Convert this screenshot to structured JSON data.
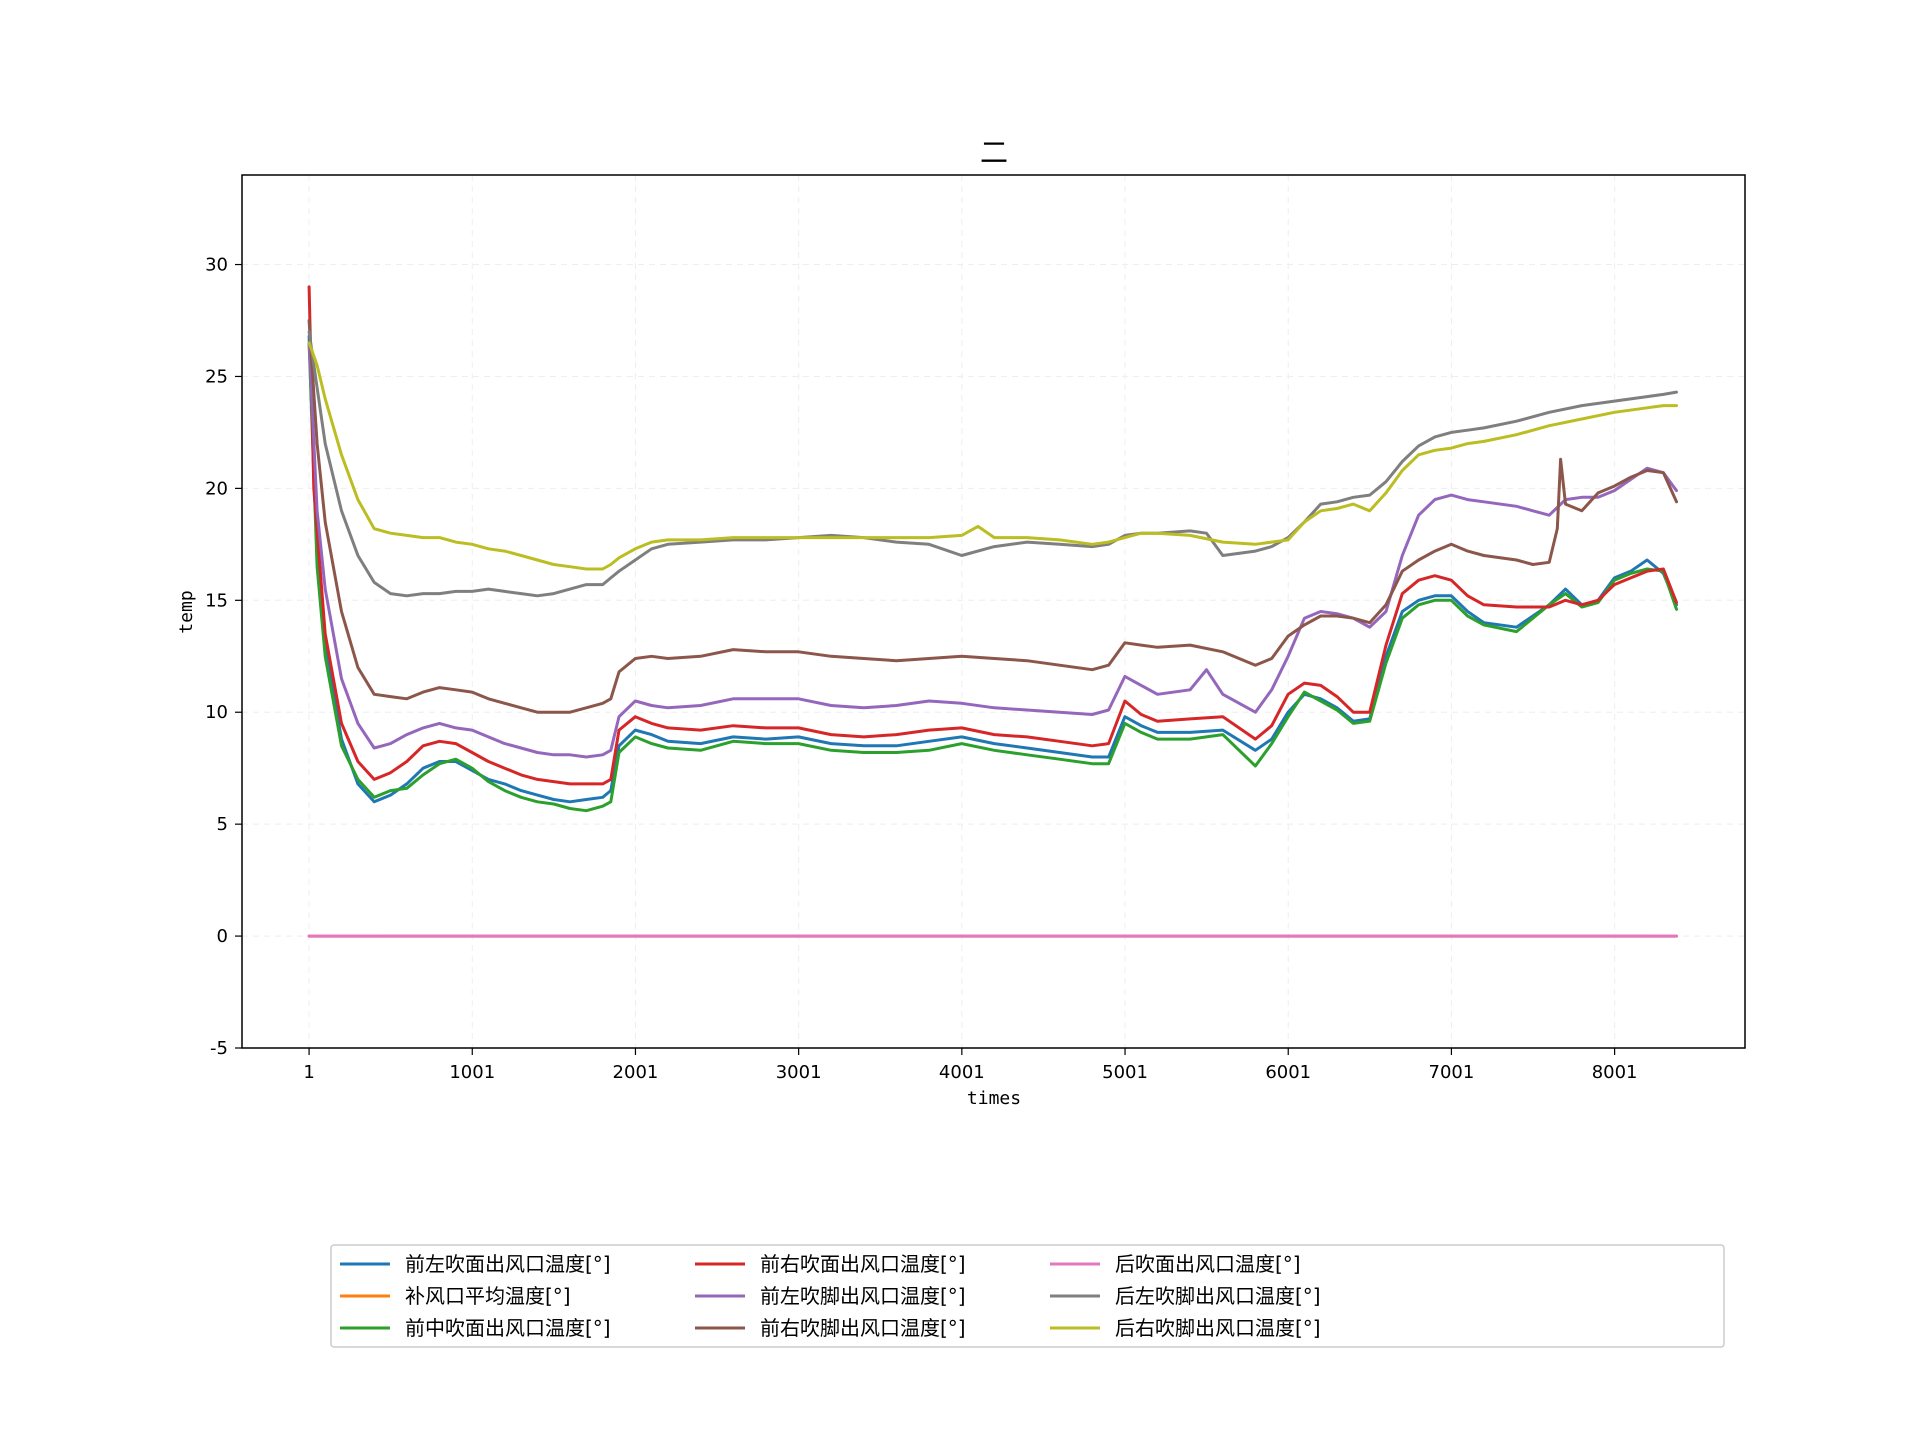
{
  "chart_data": {
    "type": "line",
    "title": "二",
    "xlabel": "times",
    "ylabel": "temp",
    "xlim": [
      -410,
      8800
    ],
    "ylim": [
      -5,
      34
    ],
    "xticks": [
      1,
      1001,
      2001,
      3001,
      4001,
      5001,
      6001,
      7001,
      8001
    ],
    "yticks": [
      -5,
      0,
      5,
      10,
      15,
      20,
      25,
      30
    ],
    "grid": true,
    "legend_placement": "bottom-center, 4 columns",
    "series": [
      {
        "name": "前左吹面出风口温度[°]",
        "color": "#1f77b4",
        "x": [
          1,
          50,
          100,
          200,
          300,
          400,
          500,
          600,
          700,
          800,
          900,
          1000,
          1100,
          1200,
          1300,
          1400,
          1500,
          1600,
          1700,
          1800,
          1850,
          1900,
          2000,
          2100,
          2200,
          2400,
          2600,
          2800,
          3000,
          3200,
          3400,
          3600,
          3800,
          4000,
          4200,
          4400,
          4600,
          4800,
          4900,
          5000,
          5100,
          5200,
          5400,
          5600,
          5800,
          5900,
          6000,
          6100,
          6200,
          6300,
          6400,
          6500,
          6600,
          6700,
          6800,
          6900,
          7000,
          7100,
          7200,
          7400,
          7600,
          7700,
          7800,
          7900,
          8000,
          8100,
          8200,
          8300,
          8380
        ],
        "y": [
          26.8,
          17.0,
          13.0,
          8.8,
          6.8,
          6.0,
          6.3,
          6.8,
          7.5,
          7.8,
          7.8,
          7.4,
          7.0,
          6.8,
          6.5,
          6.3,
          6.1,
          6.0,
          6.1,
          6.2,
          6.5,
          8.5,
          9.2,
          9.0,
          8.7,
          8.6,
          8.9,
          8.8,
          8.9,
          8.6,
          8.5,
          8.5,
          8.7,
          8.9,
          8.6,
          8.4,
          8.2,
          8.0,
          8.0,
          9.8,
          9.4,
          9.1,
          9.1,
          9.2,
          8.3,
          8.8,
          10.0,
          10.8,
          10.6,
          10.2,
          9.6,
          9.7,
          12.5,
          14.5,
          15.0,
          15.2,
          15.2,
          14.5,
          14.0,
          13.8,
          14.8,
          15.5,
          14.8,
          15.0,
          16.0,
          16.3,
          16.8,
          16.2,
          14.8
        ]
      },
      {
        "name": "补风口平均温度[°]",
        "color": "#ff7f0e",
        "x": [
          1,
          8380
        ],
        "y": [
          0,
          0
        ]
      },
      {
        "name": "前中吹面出风口温度[°]",
        "color": "#2ca02c",
        "x": [
          1,
          50,
          100,
          200,
          300,
          400,
          500,
          600,
          700,
          800,
          900,
          1000,
          1100,
          1200,
          1300,
          1400,
          1500,
          1600,
          1700,
          1800,
          1850,
          1900,
          2000,
          2100,
          2200,
          2400,
          2600,
          2800,
          3000,
          3200,
          3400,
          3600,
          3800,
          4000,
          4200,
          4400,
          4600,
          4800,
          4900,
          5000,
          5100,
          5200,
          5400,
          5600,
          5800,
          5900,
          6000,
          6100,
          6200,
          6300,
          6400,
          6500,
          6600,
          6700,
          6800,
          6900,
          7000,
          7100,
          7200,
          7400,
          7600,
          7700,
          7800,
          7900,
          8000,
          8100,
          8200,
          8300,
          8380
        ],
        "y": [
          26.5,
          16.5,
          12.5,
          8.5,
          7.0,
          6.2,
          6.5,
          6.6,
          7.2,
          7.7,
          7.9,
          7.5,
          6.9,
          6.5,
          6.2,
          6.0,
          5.9,
          5.7,
          5.6,
          5.8,
          6.0,
          8.2,
          8.9,
          8.6,
          8.4,
          8.3,
          8.7,
          8.6,
          8.6,
          8.3,
          8.2,
          8.2,
          8.3,
          8.6,
          8.3,
          8.1,
          7.9,
          7.7,
          7.7,
          9.5,
          9.1,
          8.8,
          8.8,
          9.0,
          7.6,
          8.6,
          9.8,
          10.9,
          10.5,
          10.1,
          9.5,
          9.6,
          12.2,
          14.2,
          14.8,
          15.0,
          15.0,
          14.3,
          13.9,
          13.6,
          14.8,
          15.3,
          14.7,
          14.9,
          15.9,
          16.2,
          16.4,
          16.3,
          14.6
        ]
      },
      {
        "name": "前右吹面出风口温度[°]",
        "color": "#d62728",
        "x": [
          1,
          30,
          100,
          200,
          300,
          400,
          500,
          600,
          700,
          800,
          900,
          1000,
          1100,
          1200,
          1300,
          1400,
          1500,
          1600,
          1700,
          1800,
          1850,
          1900,
          2000,
          2100,
          2200,
          2400,
          2600,
          2800,
          3000,
          3200,
          3400,
          3600,
          3800,
          4000,
          4200,
          4400,
          4600,
          4800,
          4900,
          5000,
          5100,
          5200,
          5400,
          5600,
          5800,
          5900,
          6000,
          6100,
          6200,
          6300,
          6400,
          6500,
          6600,
          6700,
          6800,
          6900,
          7000,
          7100,
          7200,
          7400,
          7600,
          7700,
          7800,
          7900,
          8000,
          8100,
          8200,
          8300,
          8380
        ],
        "y": [
          29.0,
          20.0,
          13.5,
          9.5,
          7.8,
          7.0,
          7.3,
          7.8,
          8.5,
          8.7,
          8.6,
          8.2,
          7.8,
          7.5,
          7.2,
          7.0,
          6.9,
          6.8,
          6.8,
          6.8,
          7.0,
          9.2,
          9.8,
          9.5,
          9.3,
          9.2,
          9.4,
          9.3,
          9.3,
          9.0,
          8.9,
          9.0,
          9.2,
          9.3,
          9.0,
          8.9,
          8.7,
          8.5,
          8.6,
          10.5,
          9.9,
          9.6,
          9.7,
          9.8,
          8.8,
          9.4,
          10.8,
          11.3,
          11.2,
          10.7,
          10.0,
          10.0,
          13.0,
          15.3,
          15.9,
          16.1,
          15.9,
          15.2,
          14.8,
          14.7,
          14.7,
          15.0,
          14.8,
          15.0,
          15.7,
          16.0,
          16.3,
          16.4,
          14.9
        ]
      },
      {
        "name": "前左吹脚出风口温度[°]",
        "color": "#9467bd",
        "x": [
          1,
          50,
          100,
          200,
          300,
          400,
          500,
          600,
          700,
          800,
          900,
          1000,
          1100,
          1200,
          1300,
          1400,
          1500,
          1600,
          1700,
          1800,
          1850,
          1900,
          2000,
          2100,
          2200,
          2400,
          2600,
          2800,
          3000,
          3200,
          3400,
          3600,
          3800,
          4000,
          4200,
          4400,
          4600,
          4800,
          4900,
          5000,
          5100,
          5200,
          5400,
          5500,
          5600,
          5800,
          5900,
          6000,
          6100,
          6200,
          6300,
          6400,
          6500,
          6600,
          6700,
          6800,
          6900,
          7000,
          7100,
          7200,
          7400,
          7500,
          7600,
          7700,
          7800,
          7900,
          8000,
          8100,
          8200,
          8300,
          8380
        ],
        "y": [
          26.5,
          19.0,
          15.5,
          11.5,
          9.5,
          8.4,
          8.6,
          9.0,
          9.3,
          9.5,
          9.3,
          9.2,
          8.9,
          8.6,
          8.4,
          8.2,
          8.1,
          8.1,
          8.0,
          8.1,
          8.3,
          9.8,
          10.5,
          10.3,
          10.2,
          10.3,
          10.6,
          10.6,
          10.6,
          10.3,
          10.2,
          10.3,
          10.5,
          10.4,
          10.2,
          10.1,
          10.0,
          9.9,
          10.1,
          11.6,
          11.2,
          10.8,
          11.0,
          11.9,
          10.8,
          10.0,
          11.0,
          12.5,
          14.2,
          14.5,
          14.4,
          14.2,
          13.8,
          14.5,
          17.0,
          18.8,
          19.5,
          19.7,
          19.5,
          19.4,
          19.2,
          19.0,
          18.8,
          19.5,
          19.6,
          19.6,
          19.9,
          20.4,
          20.9,
          20.7,
          19.9
        ]
      },
      {
        "name": "前右吹脚出风口温度[°]",
        "color": "#8c564b",
        "x": [
          1,
          50,
          100,
          200,
          300,
          400,
          500,
          600,
          700,
          800,
          900,
          1000,
          1100,
          1200,
          1300,
          1400,
          1500,
          1600,
          1700,
          1800,
          1850,
          1900,
          2000,
          2100,
          2200,
          2400,
          2600,
          2800,
          3000,
          3200,
          3400,
          3600,
          3800,
          4000,
          4200,
          4400,
          4600,
          4800,
          4900,
          5000,
          5100,
          5200,
          5400,
          5600,
          5800,
          5900,
          6000,
          6100,
          6200,
          6300,
          6400,
          6500,
          6600,
          6700,
          6800,
          6900,
          7000,
          7100,
          7200,
          7400,
          7500,
          7600,
          7650,
          7670,
          7700,
          7800,
          7900,
          8000,
          8100,
          8200,
          8300,
          8380
        ],
        "y": [
          27.5,
          22.0,
          18.5,
          14.5,
          12.0,
          10.8,
          10.7,
          10.6,
          10.9,
          11.1,
          11.0,
          10.9,
          10.6,
          10.4,
          10.2,
          10.0,
          10.0,
          10.0,
          10.2,
          10.4,
          10.6,
          11.8,
          12.4,
          12.5,
          12.4,
          12.5,
          12.8,
          12.7,
          12.7,
          12.5,
          12.4,
          12.3,
          12.4,
          12.5,
          12.4,
          12.3,
          12.1,
          11.9,
          12.1,
          13.1,
          13.0,
          12.9,
          13.0,
          12.7,
          12.1,
          12.4,
          13.4,
          13.9,
          14.3,
          14.3,
          14.2,
          14.0,
          14.8,
          16.3,
          16.8,
          17.2,
          17.5,
          17.2,
          17.0,
          16.8,
          16.6,
          16.7,
          18.2,
          21.3,
          19.3,
          19.0,
          19.8,
          20.1,
          20.5,
          20.8,
          20.7,
          19.4
        ]
      },
      {
        "name": "后吹面出风口温度[°]",
        "color": "#e377c2",
        "x": [
          1,
          8380
        ],
        "y": [
          0,
          0
        ]
      },
      {
        "name": "后左吹脚出风口温度[°]",
        "color": "#7f7f7f",
        "x": [
          1,
          50,
          100,
          200,
          300,
          400,
          500,
          600,
          700,
          800,
          900,
          1000,
          1100,
          1200,
          1300,
          1400,
          1500,
          1600,
          1700,
          1800,
          1850,
          1900,
          2000,
          2100,
          2200,
          2400,
          2600,
          2800,
          3000,
          3200,
          3400,
          3600,
          3800,
          4000,
          4200,
          4400,
          4600,
          4800,
          4900,
          5000,
          5100,
          5200,
          5400,
          5500,
          5600,
          5800,
          5900,
          6000,
          6100,
          6200,
          6300,
          6400,
          6500,
          6600,
          6700,
          6800,
          6900,
          7000,
          7100,
          7200,
          7400,
          7600,
          7800,
          8000,
          8200,
          8300,
          8380
        ],
        "y": [
          27.0,
          24.5,
          22.0,
          19.0,
          17.0,
          15.8,
          15.3,
          15.2,
          15.3,
          15.3,
          15.4,
          15.4,
          15.5,
          15.4,
          15.3,
          15.2,
          15.3,
          15.5,
          15.7,
          15.7,
          16.0,
          16.3,
          16.8,
          17.3,
          17.5,
          17.6,
          17.7,
          17.7,
          17.8,
          17.9,
          17.8,
          17.6,
          17.5,
          17.0,
          17.4,
          17.6,
          17.5,
          17.4,
          17.5,
          17.9,
          18.0,
          18.0,
          18.1,
          18.0,
          17.0,
          17.2,
          17.4,
          17.8,
          18.5,
          19.3,
          19.4,
          19.6,
          19.7,
          20.3,
          21.2,
          21.9,
          22.3,
          22.5,
          22.6,
          22.7,
          23.0,
          23.4,
          23.7,
          23.9,
          24.1,
          24.2,
          24.3
        ]
      },
      {
        "name": "后右吹脚出风口温度[°]",
        "color": "#bcbd22",
        "x": [
          1,
          50,
          100,
          200,
          300,
          400,
          500,
          600,
          700,
          800,
          900,
          1000,
          1100,
          1200,
          1300,
          1400,
          1500,
          1600,
          1700,
          1800,
          1850,
          1900,
          2000,
          2100,
          2200,
          2400,
          2600,
          2800,
          3000,
          3200,
          3400,
          3600,
          3800,
          4000,
          4100,
          4200,
          4400,
          4600,
          4800,
          4900,
          5000,
          5100,
          5200,
          5400,
          5600,
          5800,
          5900,
          6000,
          6100,
          6200,
          6300,
          6400,
          6500,
          6600,
          6700,
          6800,
          6900,
          7000,
          7100,
          7200,
          7400,
          7600,
          7800,
          8000,
          8200,
          8300,
          8380
        ],
        "y": [
          26.5,
          25.5,
          24.0,
          21.5,
          19.5,
          18.2,
          18.0,
          17.9,
          17.8,
          17.8,
          17.6,
          17.5,
          17.3,
          17.2,
          17.0,
          16.8,
          16.6,
          16.5,
          16.4,
          16.4,
          16.6,
          16.9,
          17.3,
          17.6,
          17.7,
          17.7,
          17.8,
          17.8,
          17.8,
          17.8,
          17.8,
          17.8,
          17.8,
          17.9,
          18.3,
          17.8,
          17.8,
          17.7,
          17.5,
          17.6,
          17.8,
          18.0,
          18.0,
          17.9,
          17.6,
          17.5,
          17.6,
          17.7,
          18.5,
          19.0,
          19.1,
          19.3,
          19.0,
          19.8,
          20.8,
          21.5,
          21.7,
          21.8,
          22.0,
          22.1,
          22.4,
          22.8,
          23.1,
          23.4,
          23.6,
          23.7,
          23.7
        ]
      }
    ]
  }
}
